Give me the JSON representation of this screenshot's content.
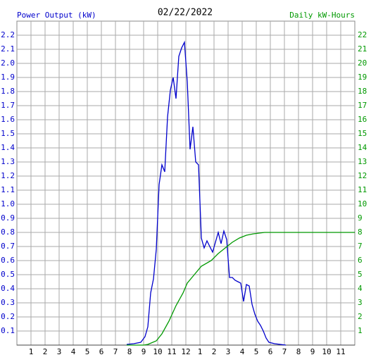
{
  "chart_data": {
    "type": "line",
    "title": "02/22/2022",
    "ylabel": "Power Output (kW)",
    "y2label": "Daily kW-Hours",
    "xlim": [
      0,
      24
    ],
    "xticks": [
      1,
      2,
      3,
      4,
      5,
      6,
      7,
      8,
      9,
      10,
      11,
      12,
      {
        "value": 13,
        "label": "1"
      },
      {
        "value": 14,
        "label": "2"
      },
      {
        "value": 15,
        "label": "3"
      },
      {
        "value": 16,
        "label": "4"
      },
      {
        "value": 17,
        "label": "5"
      },
      {
        "value": 18,
        "label": "6"
      },
      {
        "value": 19,
        "label": "7"
      },
      {
        "value": 20,
        "label": "8"
      },
      {
        "value": 21,
        "label": "9"
      },
      {
        "value": 22,
        "label": "10"
      },
      {
        "value": 23,
        "label": "11"
      }
    ],
    "ylim": [
      0,
      2.3
    ],
    "yticks": [
      0.1,
      0.2,
      0.3,
      0.4,
      0.5,
      0.6,
      0.7,
      0.8,
      0.9,
      {
        "value": 1,
        "label": "1.0"
      },
      1.1,
      1.2,
      1.3,
      1.4,
      1.5,
      1.6,
      1.7,
      1.8,
      1.9,
      {
        "value": 2,
        "label": "2.0"
      },
      2.1,
      2.2
    ],
    "y2lim": [
      0,
      23
    ],
    "y2ticks": [
      1,
      2,
      3,
      4,
      5,
      6,
      7,
      8,
      9,
      10,
      11,
      12,
      13,
      14,
      15,
      16,
      17,
      18,
      19,
      20,
      21,
      22
    ],
    "grid": true,
    "series": [
      {
        "color": "#0000cc",
        "axis": "y",
        "x": [
          7.8,
          8.3,
          8.8,
          9.1,
          9.3,
          9.5,
          9.7,
          9.9,
          10.1,
          10.3,
          10.5,
          10.7,
          10.9,
          11.1,
          11.3,
          11.5,
          11.7,
          11.9,
          12.1,
          12.3,
          12.5,
          12.7,
          12.9,
          13.1,
          13.3,
          13.5,
          13.7,
          13.9,
          14.1,
          14.3,
          14.5,
          14.7,
          14.9,
          15.1,
          15.3,
          15.5,
          15.7,
          15.9,
          16.1,
          16.3,
          16.5,
          16.7,
          16.9,
          17.1,
          17.3,
          17.5,
          17.7,
          17.9,
          18.3,
          19.1
        ],
        "values": [
          0.005,
          0.01,
          0.02,
          0.06,
          0.13,
          0.37,
          0.47,
          0.68,
          1.14,
          1.28,
          1.23,
          1.62,
          1.81,
          1.9,
          1.75,
          2.05,
          2.11,
          2.15,
          1.87,
          1.39,
          1.55,
          1.3,
          1.28,
          0.76,
          0.69,
          0.74,
          0.7,
          0.66,
          0.73,
          0.8,
          0.72,
          0.81,
          0.75,
          0.48,
          0.48,
          0.46,
          0.45,
          0.44,
          0.31,
          0.43,
          0.42,
          0.29,
          0.22,
          0.17,
          0.14,
          0.1,
          0.05,
          0.02,
          0.01,
          0
        ]
      },
      {
        "color": "#009900",
        "axis": "y2",
        "x": [
          7.8,
          9.0,
          9.3,
          9.9,
          10.3,
          10.8,
          11.3,
          11.8,
          12.1,
          12.6,
          13.1,
          13.8,
          14.3,
          14.8,
          15.3,
          15.8,
          16.3,
          16.8,
          17.6,
          24
        ],
        "values": [
          0,
          0,
          0.05,
          0.3,
          0.8,
          1.7,
          2.8,
          3.7,
          4.4,
          5.0,
          5.6,
          6.0,
          6.5,
          6.9,
          7.3,
          7.6,
          7.8,
          7.9,
          8.0,
          8.0
        ]
      }
    ]
  }
}
